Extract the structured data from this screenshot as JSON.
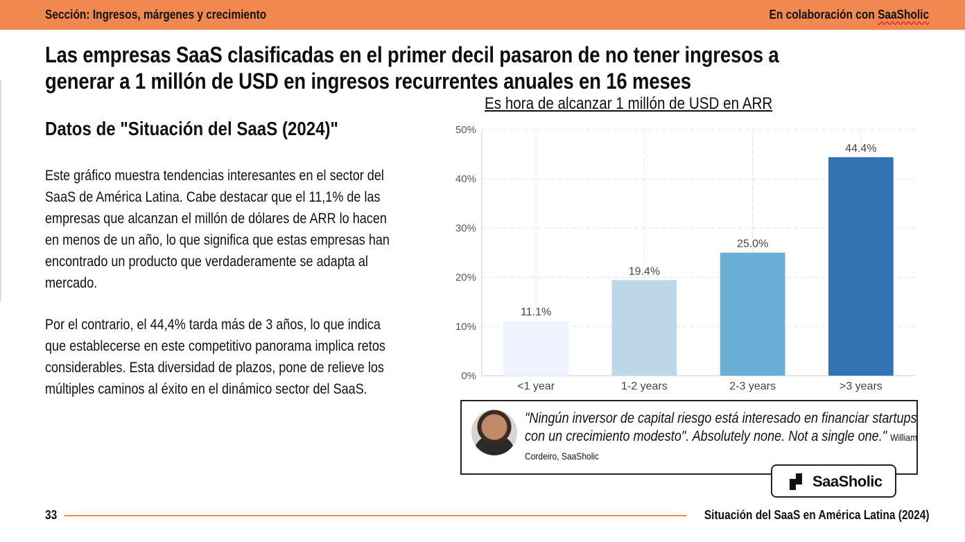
{
  "header": {
    "section": "Sección: Ingresos, márgenes y crecimiento",
    "collab_prefix": "En colaboración con ",
    "collab_brand": "SaaSholic",
    "bar_color": "#f0884f"
  },
  "headline": "Las empresas SaaS clasificadas en el primer decil pasaron de no tener ingresos a generar a 1 millón de USD en ingresos recurrentes anuales en 16 meses",
  "subhead": "Datos de \"Situación del SaaS (2024)\"",
  "paragraphs": [
    "Este gráfico muestra tendencias interesantes en el sector del SaaS de América Latina. Cabe destacar que el 11,1% de las empresas que alcanzan el millón de dólares de ARR lo hacen en menos de un año, lo que significa que estas empresas han encontrado un producto que verdaderamente se adapta al mercado.",
    "Por el contrario, el 44,4% tarda más de 3 años, lo que indica que establecerse en este competitivo panorama implica retos considerables. Esta diversidad de plazos, pone de relieve los múltiples caminos al éxito en el dinámico sector del SaaS."
  ],
  "chart_data": {
    "type": "bar",
    "title": "Es hora de alcanzar 1 millón de USD en ARR",
    "categories": [
      "<1 year",
      "1-2 years",
      "2-3 years",
      ">3 years"
    ],
    "values": [
      11.1,
      19.4,
      25.0,
      44.4
    ],
    "value_labels": [
      "11.1%",
      "19.4%",
      "25.0%",
      "44.4%"
    ],
    "colors": [
      "#eff3ff",
      "#bdd7e7",
      "#6baed6",
      "#3373b3"
    ],
    "ylim": [
      0,
      50
    ],
    "yticks": [
      0,
      10,
      20,
      30,
      40,
      50
    ],
    "ytick_labels": [
      "0%",
      "10%",
      "20%",
      "30%",
      "40%",
      "50%"
    ],
    "grid": true,
    "xlabel": "",
    "ylabel": ""
  },
  "quote": {
    "text": "\"Ningún inversor de capital riesgo está interesado en financiar startups con un crecimiento modesto\". Absolutely none. Not a single one.\"",
    "author": "William Cordeiro, SaaSholic"
  },
  "logo_text": "SaaSholic",
  "footer": {
    "page_number": "33",
    "title": "Situación del SaaS en América Latina (2024)"
  }
}
